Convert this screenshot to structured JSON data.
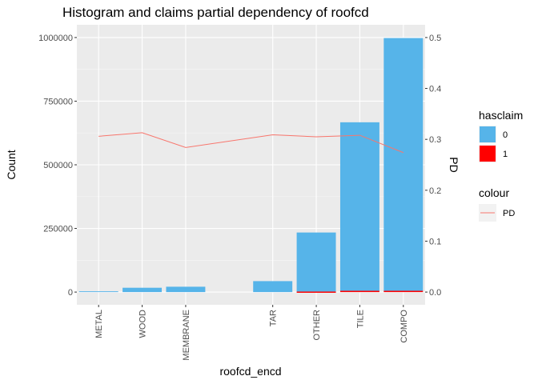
{
  "chart_data": {
    "type": "bar",
    "title": "Histogram and claims partial dependency of roofcd",
    "xlabel": "roofcd_encd",
    "ylabel": "Count",
    "y2label": "PD",
    "categories": [
      "METAL",
      "WOOD",
      "MEMBRANE",
      "TAR",
      "OTHER",
      "TILE",
      "COMPO"
    ],
    "x_positions": [
      1,
      2,
      3,
      5,
      6,
      7,
      8
    ],
    "xlim": [
      0.5,
      8.5
    ],
    "ylim": [
      -50000,
      1050000
    ],
    "y_ticks": [
      0,
      250000,
      500000,
      750000,
      1000000
    ],
    "y_tick_labels": [
      "0",
      "250000",
      "500000",
      "750000",
      "1000000"
    ],
    "y2lim": [
      -0.025,
      0.525
    ],
    "y2_ticks": [
      0.0,
      0.1,
      0.2,
      0.3,
      0.4,
      0.5
    ],
    "y2_tick_labels": [
      "0.0",
      "0.1",
      "0.2",
      "0.3",
      "0.4",
      "0.5"
    ],
    "series": [
      {
        "name": "0",
        "type": "bar",
        "color": "#56B4E9",
        "values": [
          3000,
          17000,
          21000,
          43000,
          232000,
          662000,
          993000
        ]
      },
      {
        "name": "1",
        "type": "bar",
        "color": "#FF0000",
        "values": [
          0,
          0,
          0,
          0,
          2000,
          5000,
          5000
        ]
      },
      {
        "name": "PD",
        "type": "line",
        "axis": "right",
        "color": "#F8766D",
        "values": [
          0.306,
          0.313,
          0.284,
          0.309,
          0.305,
          0.308,
          0.274
        ]
      }
    ],
    "grid": true,
    "background": "#EBEBEB",
    "legend": {
      "position": "right",
      "groups": [
        {
          "title": "hasclaim",
          "items": [
            {
              "label": "0",
              "color": "#56B4E9"
            },
            {
              "label": "1",
              "color": "#FF0000"
            }
          ]
        },
        {
          "title": "colour",
          "items": [
            {
              "label": "PD",
              "color": "#F8766D"
            }
          ]
        }
      ]
    }
  }
}
